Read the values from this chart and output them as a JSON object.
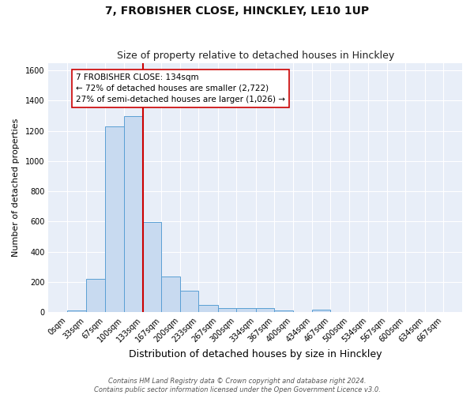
{
  "title": "7, FROBISHER CLOSE, HINCKLEY, LE10 1UP",
  "subtitle": "Size of property relative to detached houses in Hinckley",
  "xlabel": "Distribution of detached houses by size in Hinckley",
  "ylabel": "Number of detached properties",
  "bin_edges": [
    0,
    33,
    67,
    100,
    133,
    167,
    200,
    233,
    267,
    300,
    334,
    367,
    400,
    434,
    467,
    500,
    534,
    567,
    600,
    634,
    667
  ],
  "bar_heights": [
    10,
    220,
    1230,
    1300,
    595,
    235,
    140,
    50,
    30,
    25,
    25,
    10,
    0,
    15,
    0,
    0,
    0,
    0,
    0,
    0
  ],
  "bar_color": "#c8daf0",
  "bar_edge_color": "#5a9fd4",
  "property_size": 134,
  "vline_color": "#cc0000",
  "annotation_text": "7 FROBISHER CLOSE: 134sqm\n← 72% of detached houses are smaller (2,722)\n27% of semi-detached houses are larger (1,026) →",
  "annotation_box_facecolor": "#ffffff",
  "annotation_box_edgecolor": "#cc0000",
  "ylim": [
    0,
    1650
  ],
  "yticks": [
    0,
    200,
    400,
    600,
    800,
    1000,
    1200,
    1400,
    1600
  ],
  "plot_bg_color": "#e8eef8",
  "fig_bg_color": "#ffffff",
  "grid_color": "#ffffff",
  "footer_line1": "Contains HM Land Registry data © Crown copyright and database right 2024.",
  "footer_line2": "Contains public sector information licensed under the Open Government Licence v3.0.",
  "title_fontsize": 10,
  "subtitle_fontsize": 9,
  "xlabel_fontsize": 9,
  "ylabel_fontsize": 8,
  "tick_fontsize": 7,
  "annotation_fontsize": 7.5,
  "footer_fontsize": 6
}
